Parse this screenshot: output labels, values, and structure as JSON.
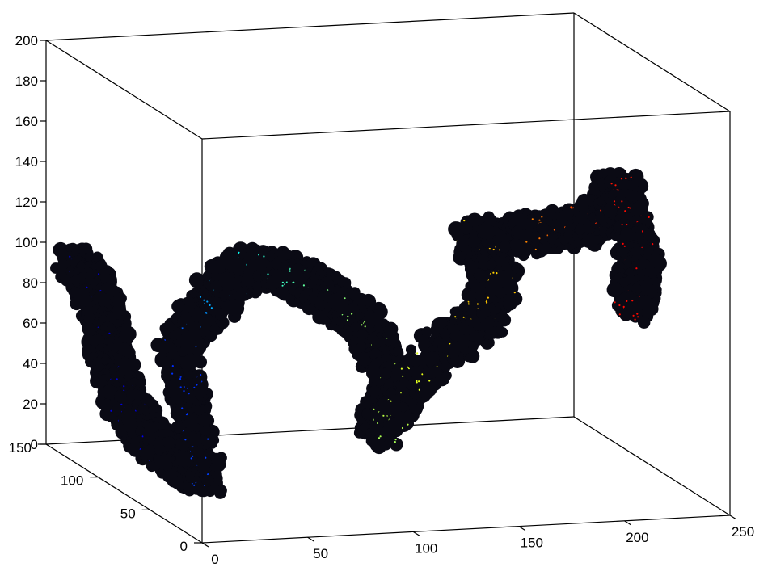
{
  "chart_data": {
    "type": "scatter",
    "title": "",
    "xlabel": "",
    "ylabel": "",
    "zlabel": "",
    "xlim": [
      0,
      250
    ],
    "ylim": [
      0,
      150
    ],
    "zlim": [
      0,
      200
    ],
    "grid": false,
    "colormap": "jet",
    "x_ticks": [
      "0",
      "50",
      "100",
      "150",
      "200",
      "250"
    ],
    "y_ticks": [
      "0",
      "50",
      "100",
      "150"
    ],
    "z_ticks": [
      "0",
      "20",
      "40",
      "60",
      "80",
      "100",
      "120",
      "140",
      "160",
      "180",
      "200"
    ],
    "colormap_colors": [
      "#00008f",
      "#0000ff",
      "#00ffff",
      "#7fff7f",
      "#ffff00",
      "#ff7f00",
      "#ff0000",
      "#800000"
    ],
    "point_color": "#0a0a14",
    "cluster_path": [
      {
        "x": 12,
        "y": 145,
        "z": 90
      },
      {
        "x": 18,
        "y": 140,
        "z": 80
      },
      {
        "x": 22,
        "y": 135,
        "z": 62
      },
      {
        "x": 20,
        "y": 130,
        "z": 45
      },
      {
        "x": 24,
        "y": 120,
        "z": 28
      },
      {
        "x": 30,
        "y": 110,
        "z": 14
      },
      {
        "x": 38,
        "y": 95,
        "z": 4
      },
      {
        "x": 45,
        "y": 90,
        "z": 2
      },
      {
        "x": 42,
        "y": 110,
        "z": 60
      },
      {
        "x": 55,
        "y": 105,
        "z": 80
      },
      {
        "x": 70,
        "y": 100,
        "z": 100
      },
      {
        "x": 85,
        "y": 95,
        "z": 100
      },
      {
        "x": 100,
        "y": 85,
        "z": 90
      },
      {
        "x": 112,
        "y": 75,
        "z": 80
      },
      {
        "x": 120,
        "y": 70,
        "z": 62
      },
      {
        "x": 125,
        "y": 65,
        "z": 44
      },
      {
        "x": 118,
        "y": 70,
        "z": 28
      },
      {
        "x": 140,
        "y": 55,
        "z": 70
      },
      {
        "x": 155,
        "y": 45,
        "z": 88
      },
      {
        "x": 160,
        "y": 40,
        "z": 108
      },
      {
        "x": 150,
        "y": 45,
        "z": 128
      },
      {
        "x": 170,
        "y": 35,
        "z": 132
      },
      {
        "x": 190,
        "y": 25,
        "z": 138
      },
      {
        "x": 200,
        "y": 20,
        "z": 145
      },
      {
        "x": 208,
        "y": 18,
        "z": 158
      },
      {
        "x": 215,
        "y": 15,
        "z": 120
      },
      {
        "x": 212,
        "y": 18,
        "z": 100
      }
    ]
  }
}
